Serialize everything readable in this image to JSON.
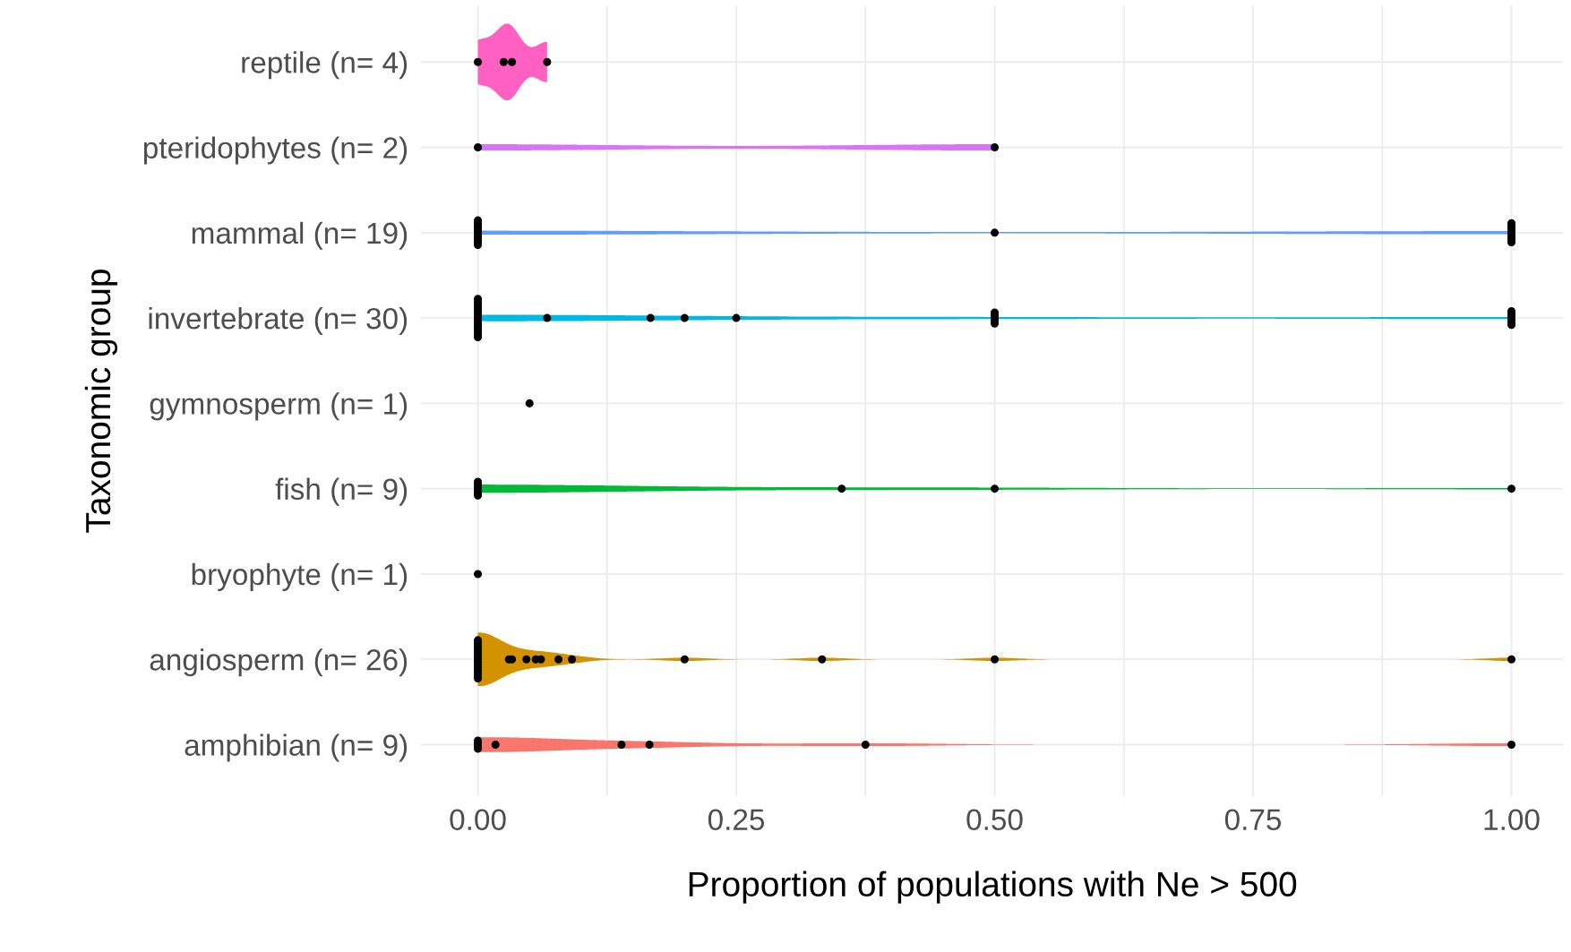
{
  "chart_data": {
    "type": "scatter",
    "orientation": "horizontal",
    "xlabel": "Proportion of populations with Ne > 500",
    "ylabel": "Taxonomic group",
    "categories": [
      "reptile (n= 4)",
      "pteridophytes (n= 2)",
      "mammal (n= 19)",
      "invertebrate (n= 30)",
      "gymnosperm (n= 1)",
      "fish (n= 9)",
      "bryophyte (n= 1)",
      "angiosperm (n= 26)",
      "amphibian (n= 9)"
    ],
    "colors": [
      "#ff61c3",
      "#db72fb",
      "#619cff",
      "#00b9e3",
      "#00c19f",
      "#00ba38",
      "#93aa00",
      "#d39200",
      "#f8766d"
    ],
    "xlim": [
      -0.055,
      1.05
    ],
    "xticks": [
      {
        "value": 0,
        "label": "0.00"
      },
      {
        "value": 0.125,
        "label": null
      },
      {
        "value": 0.25,
        "label": "0.25"
      },
      {
        "value": 0.375,
        "label": null
      },
      {
        "value": 0.5,
        "label": "0.50"
      },
      {
        "value": 0.625,
        "label": null
      },
      {
        "value": 0.75,
        "label": "0.75"
      },
      {
        "value": 0.875,
        "label": null
      },
      {
        "value": 1,
        "label": "1.00"
      }
    ],
    "grid": true,
    "marker": "circle",
    "legend": false,
    "series": [
      {
        "color": "#000000",
        "x": [
          "reptile (n= 4)",
          "reptile (n= 4)",
          "reptile (n= 4)",
          "reptile (n= 4)",
          "pteridophytes (n= 2)",
          "pteridophytes (n= 2)",
          "mammal (n= 19)",
          "mammal (n= 19)",
          "mammal (n= 19)",
          "mammal (n= 19)",
          "mammal (n= 19)",
          "mammal (n= 19)",
          "mammal (n= 19)",
          "mammal (n= 19)",
          "mammal (n= 19)",
          "mammal (n= 19)",
          "mammal (n= 19)",
          "mammal (n= 19)",
          "mammal (n= 19)",
          "mammal (n= 19)",
          "mammal (n= 19)",
          "mammal (n= 19)",
          "mammal (n= 19)",
          "mammal (n= 19)",
          "mammal (n= 19)",
          "invertebrate (n= 30)",
          "invertebrate (n= 30)",
          "invertebrate (n= 30)",
          "invertebrate (n= 30)",
          "invertebrate (n= 30)",
          "invertebrate (n= 30)",
          "invertebrate (n= 30)",
          "invertebrate (n= 30)",
          "invertebrate (n= 30)",
          "invertebrate (n= 30)",
          "invertebrate (n= 30)",
          "invertebrate (n= 30)",
          "invertebrate (n= 30)",
          "invertebrate (n= 30)",
          "invertebrate (n= 30)",
          "invertebrate (n= 30)",
          "invertebrate (n= 30)",
          "invertebrate (n= 30)",
          "invertebrate (n= 30)",
          "invertebrate (n= 30)",
          "invertebrate (n= 30)",
          "invertebrate (n= 30)",
          "invertebrate (n= 30)",
          "invertebrate (n= 30)",
          "invertebrate (n= 30)",
          "invertebrate (n= 30)",
          "invertebrate (n= 30)",
          "invertebrate (n= 30)",
          "invertebrate (n= 30)",
          "invertebrate (n= 30)",
          "gymnosperm (n= 1)",
          "fish (n= 9)",
          "fish (n= 9)",
          "fish (n= 9)",
          "fish (n= 9)",
          "fish (n= 9)",
          "fish (n= 9)",
          "fish (n= 9)",
          "fish (n= 9)",
          "fish (n= 9)",
          "bryophyte (n= 1)",
          "angiosperm (n= 26)",
          "angiosperm (n= 26)",
          "angiosperm (n= 26)",
          "angiosperm (n= 26)",
          "angiosperm (n= 26)",
          "angiosperm (n= 26)",
          "angiosperm (n= 26)",
          "angiosperm (n= 26)",
          "angiosperm (n= 26)",
          "angiosperm (n= 26)",
          "angiosperm (n= 26)",
          "angiosperm (n= 26)",
          "angiosperm (n= 26)",
          "angiosperm (n= 26)",
          "angiosperm (n= 26)",
          "angiosperm (n= 26)",
          "angiosperm (n= 26)",
          "angiosperm (n= 26)",
          "angiosperm (n= 26)",
          "angiosperm (n= 26)",
          "angiosperm (n= 26)",
          "angiosperm (n= 26)",
          "angiosperm (n= 26)",
          "angiosperm (n= 26)",
          "angiosperm (n= 26)",
          "angiosperm (n= 26)",
          "amphibian (n= 9)",
          "amphibian (n= 9)",
          "amphibian (n= 9)",
          "amphibian (n= 9)",
          "amphibian (n= 9)",
          "amphibian (n= 9)",
          "amphibian (n= 9)",
          "amphibian (n= 9)",
          "amphibian (n= 9)"
        ],
        "values": [
          0,
          0.025,
          0.033,
          0.067,
          0,
          0.5,
          0,
          0,
          0,
          0,
          0,
          0,
          0,
          0,
          0,
          0,
          0.5,
          1,
          1,
          1,
          1,
          1,
          1,
          1,
          1,
          0,
          0,
          0,
          0,
          0,
          0,
          0,
          0,
          0,
          0,
          0,
          0,
          0,
          0,
          0,
          0.067,
          0.167,
          0.2,
          0.25,
          0.5,
          0.5,
          0.5,
          0.5,
          0.5,
          1,
          1,
          1,
          1,
          1,
          1,
          0.05,
          0,
          0,
          0,
          0,
          0,
          0,
          0.352,
          0.5,
          1,
          0,
          0,
          0,
          0,
          0,
          0,
          0,
          0,
          0,
          0,
          0,
          0,
          0,
          0,
          0,
          0,
          0.03,
          0.033,
          0.047,
          0.056,
          0.061,
          0.078,
          0.091,
          0.2,
          0.333,
          0.5,
          1,
          0,
          0,
          0,
          0,
          0.017,
          0.139,
          0.166,
          0.375,
          1
        ]
      }
    ]
  }
}
